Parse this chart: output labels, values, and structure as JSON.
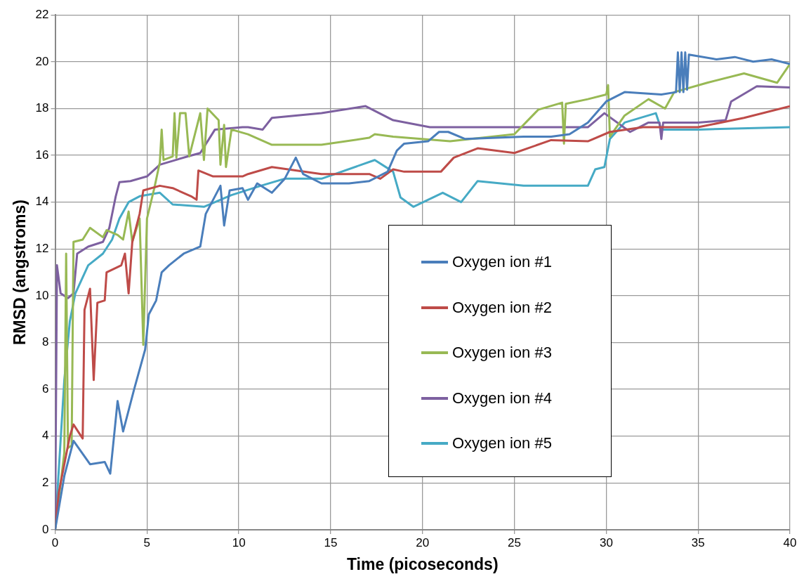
{
  "chart_data": {
    "type": "line",
    "xlabel": "Time (picoseconds)",
    "ylabel": "RMSD (angstroms)",
    "xlim": [
      0,
      40
    ],
    "ylim": [
      0,
      22
    ],
    "xticks": [
      0,
      5,
      10,
      15,
      20,
      25,
      30,
      35,
      40
    ],
    "yticks": [
      0,
      2,
      4,
      6,
      8,
      10,
      12,
      14,
      16,
      18,
      20,
      22
    ],
    "grid": true,
    "legend": "bottom right",
    "marker": "none",
    "line_style": "solid",
    "series": [
      {
        "name": "Oxygen ion #1",
        "color": "#4a7ebb",
        "x": [
          0,
          0.5,
          1,
          1.9,
          2.7,
          3,
          3.4,
          3.7,
          4.3,
          4.9,
          5.1,
          5.5,
          5.8,
          6.2,
          7,
          7.9,
          8.2,
          9,
          9.2,
          9.5,
          10.2,
          10.5,
          11,
          11.8,
          12.5,
          13.1,
          13.5,
          14.5,
          16,
          17.1,
          18.1,
          18.6,
          19,
          20.3,
          20.9,
          21.4,
          22.3,
          25.5,
          27,
          28,
          29,
          30,
          31,
          33,
          33.8,
          33.9,
          34,
          34.1,
          34.2,
          34.3,
          34.4,
          34.5,
          36,
          37,
          38,
          39,
          40
        ],
        "values": [
          0,
          2.3,
          3.8,
          2.8,
          2.9,
          2.4,
          5.5,
          4.2,
          6,
          7.7,
          9.2,
          9.8,
          11,
          11.3,
          11.8,
          12.1,
          13.5,
          14.7,
          13,
          14.5,
          14.6,
          14.1,
          14.8,
          14.4,
          15,
          15.9,
          15.2,
          14.8,
          14.8,
          14.9,
          15.3,
          16.2,
          16.5,
          16.6,
          17,
          17,
          16.7,
          16.8,
          16.8,
          16.9,
          17.4,
          18.3,
          18.7,
          18.6,
          18.7,
          20.4,
          18.7,
          20.4,
          18.7,
          20.4,
          18.8,
          20.3,
          20.1,
          20.2,
          20,
          20.1,
          19.9
        ]
      },
      {
        "name": "Oxygen ion #2",
        "color": "#be4b48",
        "x": [
          0,
          0.2,
          0.8,
          1,
          1.5,
          1.6,
          1.9,
          2.1,
          2.3,
          2.7,
          2.8,
          3.6,
          3.8,
          4,
          4.2,
          4.6,
          4.8,
          5.7,
          6.4,
          7.4,
          7.7,
          7.8,
          8.6,
          10.2,
          10.5,
          11.8,
          14.5,
          17.1,
          17.7,
          18.4,
          19,
          21,
          21.7,
          23,
          25,
          27,
          29,
          30.2,
          32,
          35,
          37.5,
          40
        ],
        "values": [
          0,
          1.6,
          4,
          4.5,
          3.9,
          9.4,
          10.3,
          6.4,
          9.7,
          9.8,
          11,
          11.3,
          11.8,
          10.1,
          12.3,
          13.5,
          14.5,
          14.7,
          14.6,
          14.25,
          14.1,
          15.35,
          15.1,
          15.1,
          15.2,
          15.5,
          15.2,
          15.2,
          15,
          15.4,
          15.3,
          15.3,
          15.9,
          16.3,
          16.1,
          16.65,
          16.6,
          17,
          17.2,
          17.2,
          17.6,
          18.1
        ]
      },
      {
        "name": "Oxygen ion #3",
        "color": "#98b954",
        "x": [
          0,
          0.5,
          0.6,
          0.7,
          0.9,
          1,
          1.5,
          1.9,
          2.6,
          2.8,
          3.4,
          3.7,
          4,
          4.2,
          4.6,
          4.8,
          5,
          5.4,
          5.7,
          5.8,
          5.9,
          6.4,
          6.5,
          6.6,
          6.8,
          7.1,
          7.3,
          7.9,
          8.1,
          8.3,
          8.9,
          9,
          9.2,
          9.3,
          9.6,
          10.5,
          11.8,
          14.5,
          17.1,
          17.4,
          18.4,
          21.5,
          25,
          26.3,
          27.6,
          27.7,
          27.8,
          29,
          30,
          30.1,
          30.2,
          31,
          32.3,
          33.2,
          33.7,
          35.5,
          37.5,
          39.3,
          40
        ],
        "values": [
          0,
          3.3,
          11.8,
          3.5,
          3.6,
          12.3,
          12.4,
          12.9,
          12.5,
          12.8,
          12.6,
          12.4,
          13.6,
          12.3,
          13.3,
          7.9,
          13.3,
          14.6,
          15.7,
          17.1,
          15.8,
          15.95,
          17.8,
          15.9,
          17.8,
          17.8,
          15.95,
          17.8,
          15.8,
          18,
          17.5,
          15.6,
          17.3,
          15.5,
          17.1,
          16.9,
          16.45,
          16.45,
          16.75,
          16.9,
          16.8,
          16.6,
          16.9,
          17.95,
          18.25,
          16.5,
          18.2,
          18.4,
          18.6,
          19,
          16.8,
          17.7,
          18.4,
          18,
          18.7,
          19.1,
          19.5,
          19.1,
          19.9
        ]
      },
      {
        "name": "Oxygen ion #4",
        "color": "#7d60a0",
        "x": [
          0,
          0.1,
          0.3,
          0.7,
          1,
          1.2,
          1.8,
          2.6,
          2.95,
          3.3,
          3.5,
          4.1,
          5,
          5.7,
          7.2,
          7.9,
          8.7,
          10.2,
          10.5,
          11.3,
          11.8,
          14.5,
          16.9,
          18.4,
          20.4,
          25,
          29,
          29.9,
          31.3,
          32.3,
          32.9,
          33,
          33.1,
          35,
          36.5,
          36.8,
          38.2,
          40
        ],
        "values": [
          0,
          11.3,
          10.1,
          9.9,
          10.1,
          11.8,
          12.1,
          12.3,
          12.9,
          14.25,
          14.85,
          14.9,
          15.1,
          15.6,
          15.95,
          16.1,
          17.1,
          17.2,
          17.2,
          17.1,
          17.6,
          17.8,
          18.1,
          17.5,
          17.2,
          17.2,
          17.2,
          17.8,
          17,
          17.4,
          17.4,
          16.7,
          17.4,
          17.4,
          17.5,
          18.3,
          18.95,
          18.9
        ]
      },
      {
        "name": "Oxygen ion #5",
        "color": "#46aac5",
        "x": [
          0,
          0.5,
          0.8,
          1.1,
          1.8,
          2.6,
          3.1,
          3.5,
          4,
          4.6,
          5.7,
          6.4,
          8.1,
          9.6,
          11.2,
          12.5,
          14.5,
          17.4,
          18.4,
          18.8,
          19.5,
          21.1,
          22.1,
          23,
          25.5,
          29,
          29.4,
          29.9,
          30.2,
          31,
          32.7,
          33,
          35,
          40
        ],
        "values": [
          0,
          6.4,
          8.9,
          10.1,
          11.3,
          11.8,
          12.4,
          13.3,
          14,
          14.25,
          14.4,
          13.9,
          13.8,
          14.3,
          14.7,
          15,
          15,
          15.8,
          15.3,
          14.2,
          13.8,
          14.4,
          14,
          14.9,
          14.7,
          14.7,
          15.4,
          15.5,
          16.7,
          17.4,
          17.8,
          17.1,
          17.1,
          17.2
        ]
      }
    ]
  }
}
